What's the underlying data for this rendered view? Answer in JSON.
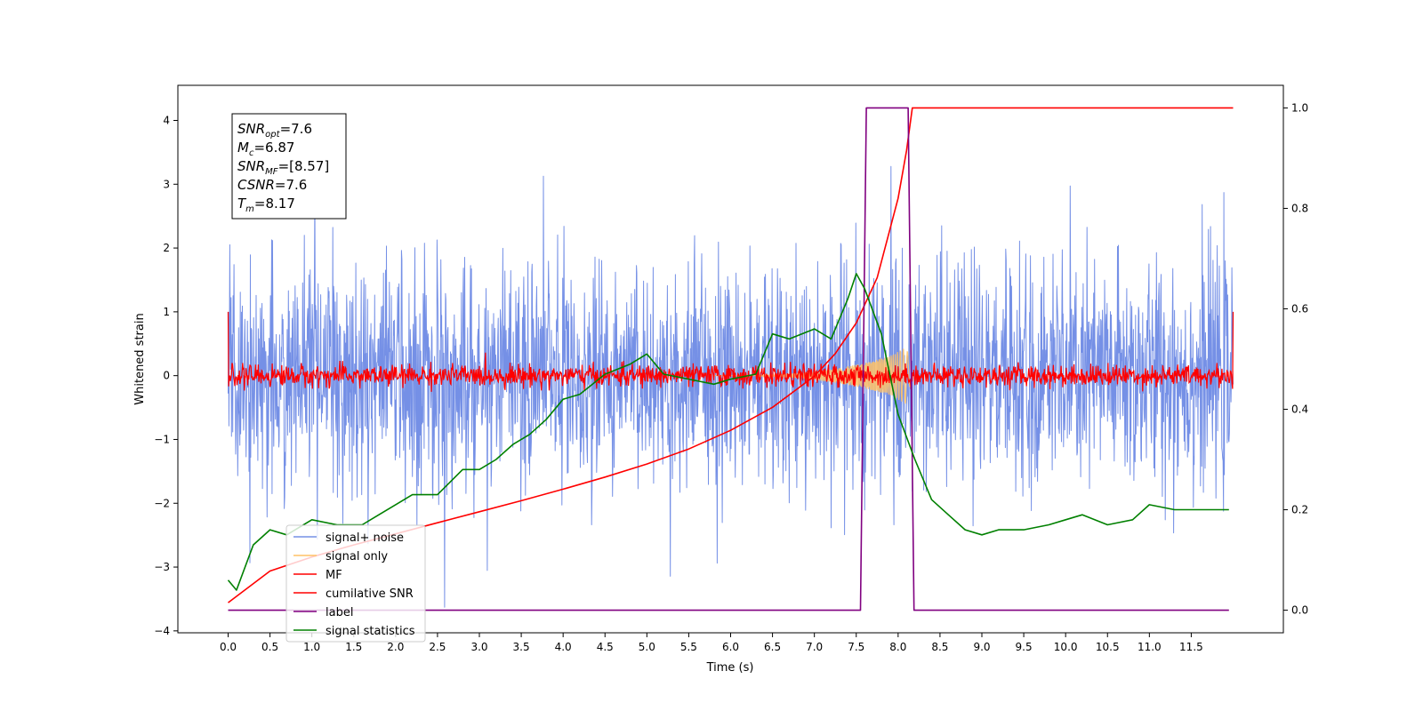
{
  "chart_data": {
    "type": "line",
    "xlabel": "Time (s)",
    "ylabel": "Whitened strain",
    "xlim": [
      -0.6,
      12.6
    ],
    "ylim": [
      -4.03,
      4.55
    ],
    "ylim_right": [
      -0.045,
      1.045
    ],
    "xticks": [
      0.0,
      0.5,
      1.0,
      1.5,
      2.0,
      2.5,
      3.0,
      3.5,
      4.0,
      4.5,
      5.0,
      5.5,
      6.0,
      6.5,
      7.0,
      7.5,
      8.0,
      8.5,
      9.0,
      9.5,
      10.0,
      10.5,
      11.0,
      11.5
    ],
    "xtick_labels": [
      "0.0",
      "0.5",
      "1.0",
      "1.5",
      "2.0",
      "2.5",
      "3.0",
      "3.5",
      "4.0",
      "4.5",
      "5.0",
      "5.5",
      "6.0",
      "6.5",
      "7.0",
      "7.5",
      "8.0",
      "8.5",
      "9.0",
      "9.5",
      "10.0",
      "10.5",
      "11.0",
      "11.5"
    ],
    "yticks": [
      -4,
      -3,
      -2,
      -1,
      0,
      1,
      2,
      3,
      4
    ],
    "ytick_labels": [
      "−4",
      "−3",
      "−2",
      "−1",
      "0",
      "1",
      "2",
      "3",
      "4"
    ],
    "yticks_right": [
      0.0,
      0.2,
      0.4,
      0.6,
      0.8,
      1.0
    ],
    "ytick_labels_right": [
      "0.0",
      "0.2",
      "0.4",
      "0.6",
      "0.8",
      "1.0"
    ],
    "grid": false,
    "legend_position": "lower-left",
    "annotation_lines": [
      {
        "sym": "SNR",
        "sub": "opt",
        "val": "=7.6"
      },
      {
        "sym": "M",
        "sub": "c",
        "val": "=6.87"
      },
      {
        "sym": "SNR",
        "sub": "MF",
        "val": "=[8.57]"
      },
      {
        "sym": "CSNR",
        "sub": "",
        "val": "=7.6"
      },
      {
        "sym": "T",
        "sub": "m",
        "val": "=8.17"
      }
    ],
    "series": [
      {
        "name": "signal+ noise",
        "color": "#7590e6",
        "axis": "left",
        "style": "noise band",
        "x_range": [
          0.0,
          12.0
        ],
        "typical_amplitude": 1.2,
        "max": 4.17,
        "min": -3.63
      },
      {
        "name": "signal only",
        "color": "#ffc266",
        "axis": "left",
        "style": "chirp",
        "x_range": [
          0.0,
          8.17
        ],
        "envelope": {
          "x": [
            6.3,
            6.9,
            7.3,
            7.6,
            7.9,
            8.1,
            8.17
          ],
          "amp": [
            0.0,
            0.05,
            0.12,
            0.2,
            0.3,
            0.45,
            0.0
          ]
        }
      },
      {
        "name": "MF",
        "color": "#ff0000",
        "axis": "left",
        "style": "noise band",
        "x_range": [
          0.0,
          12.0
        ],
        "typical_amplitude": 0.12,
        "edge_values": [
          1.0,
          1.0
        ]
      },
      {
        "name": "cumilative SNR",
        "color": "#ff0000",
        "axis": "right",
        "x": [
          0.0,
          0.5,
          1.0,
          1.5,
          2.0,
          2.5,
          3.0,
          3.5,
          4.0,
          4.5,
          5.0,
          5.5,
          6.0,
          6.5,
          7.0,
          7.25,
          7.5,
          7.75,
          8.0,
          8.1,
          8.17,
          12.0
        ],
        "values": [
          0.015,
          0.078,
          0.106,
          0.13,
          0.152,
          0.174,
          0.196,
          0.218,
          0.241,
          0.265,
          0.291,
          0.321,
          0.358,
          0.404,
          0.466,
          0.511,
          0.572,
          0.662,
          0.82,
          0.915,
          1.0,
          1.0
        ]
      },
      {
        "name": "label",
        "color": "#800080",
        "axis": "right",
        "x": [
          0.0,
          7.55,
          7.62,
          8.12,
          8.19,
          11.95
        ],
        "values": [
          0.0,
          0.0,
          1.0,
          1.0,
          0.0,
          0.0
        ]
      },
      {
        "name": "signal statistics",
        "color": "#008000",
        "axis": "right",
        "x": [
          0.0,
          0.1,
          0.3,
          0.5,
          0.7,
          1.0,
          1.3,
          1.6,
          1.8,
          2.0,
          2.2,
          2.5,
          2.8,
          3.0,
          3.2,
          3.4,
          3.6,
          3.8,
          4.0,
          4.2,
          4.5,
          4.8,
          5.0,
          5.2,
          5.5,
          5.8,
          6.0,
          6.3,
          6.5,
          6.7,
          7.0,
          7.2,
          7.4,
          7.5,
          7.6,
          7.8,
          8.0,
          8.2,
          8.4,
          8.6,
          8.8,
          9.0,
          9.2,
          9.5,
          9.8,
          10.0,
          10.2,
          10.5,
          10.8,
          11.0,
          11.3,
          11.6,
          11.95
        ],
        "values": [
          0.06,
          0.04,
          0.13,
          0.16,
          0.15,
          0.18,
          0.17,
          0.17,
          0.19,
          0.21,
          0.23,
          0.23,
          0.28,
          0.28,
          0.3,
          0.33,
          0.35,
          0.38,
          0.42,
          0.43,
          0.47,
          0.49,
          0.51,
          0.47,
          0.46,
          0.45,
          0.46,
          0.47,
          0.55,
          0.54,
          0.56,
          0.54,
          0.62,
          0.67,
          0.64,
          0.55,
          0.39,
          0.3,
          0.22,
          0.19,
          0.16,
          0.15,
          0.16,
          0.16,
          0.17,
          0.18,
          0.19,
          0.17,
          0.18,
          0.21,
          0.2,
          0.2,
          0.2
        ]
      }
    ]
  }
}
